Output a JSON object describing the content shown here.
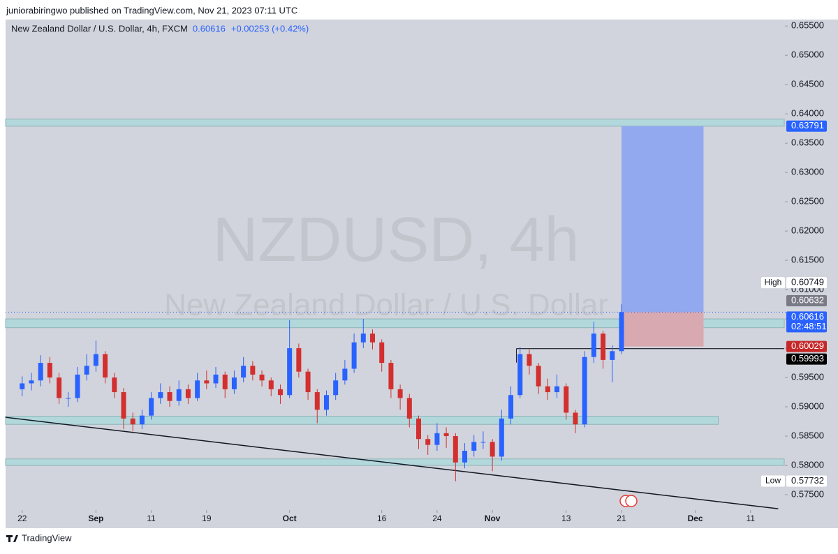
{
  "header": {
    "published": "juniorabiringwo published on TradingView.com, Nov 21, 2023 07:11 UTC"
  },
  "footer": {
    "brand": "TradingView"
  },
  "chart_data": {
    "type": "candlestick",
    "title": "New Zealand Dollar / U.S. Dollar, 4h, FXCM",
    "last_price": 0.60616,
    "change": "+0.00253 (+0.42%)",
    "watermark_symbol": "NZDUSD, 4h",
    "watermark_name": "New Zealand Dollar / U.S. Dollar",
    "up_color": "#2962ff",
    "down_color": "#d32f2f",
    "x": [
      0,
      1,
      2,
      3,
      4,
      5,
      6,
      7,
      8,
      9,
      10,
      11,
      12,
      13,
      14,
      15,
      16,
      17,
      18,
      19,
      20,
      21,
      22,
      23,
      24,
      25,
      26,
      27,
      28,
      29,
      30,
      31,
      32,
      33,
      34,
      35,
      36,
      37,
      38,
      39,
      40,
      41,
      42,
      43,
      44,
      45,
      46,
      47,
      48,
      49,
      50,
      51,
      52,
      53,
      54,
      55,
      56,
      57,
      58,
      59,
      60,
      61,
      62,
      63,
      64,
      65
    ],
    "open": [
      0.593,
      0.594,
      0.5945,
      0.5975,
      0.595,
      0.5915,
      0.5915,
      0.5955,
      0.597,
      0.599,
      0.595,
      0.5925,
      0.588,
      0.587,
      0.5885,
      0.5915,
      0.5925,
      0.591,
      0.593,
      0.5915,
      0.5945,
      0.594,
      0.5955,
      0.593,
      0.595,
      0.597,
      0.5955,
      0.5945,
      0.593,
      0.592,
      0.6,
      0.596,
      0.5925,
      0.5895,
      0.592,
      0.5945,
      0.5965,
      0.601,
      0.6025,
      0.601,
      0.5975,
      0.593,
      0.5915,
      0.588,
      0.5845,
      0.5835,
      0.5855,
      0.585,
      0.5805,
      0.5825,
      0.584,
      0.584,
      0.5815,
      0.588,
      0.592,
      0.599,
      0.597,
      0.5935,
      0.5925,
      0.5935,
      0.589,
      0.587,
      0.5985,
      0.6025,
      0.598,
      0.5995
    ],
    "high": [
      0.5952,
      0.5958,
      0.5988,
      0.5985,
      0.5958,
      0.5925,
      0.5968,
      0.599,
      0.6013,
      0.5995,
      0.5958,
      0.5932,
      0.589,
      0.5895,
      0.5925,
      0.594,
      0.5935,
      0.5945,
      0.5938,
      0.5958,
      0.5962,
      0.5968,
      0.596,
      0.5962,
      0.5985,
      0.5978,
      0.5962,
      0.595,
      0.5938,
      0.6048,
      0.6008,
      0.5965,
      0.593,
      0.5928,
      0.5958,
      0.598,
      0.6025,
      0.605,
      0.6032,
      0.6015,
      0.598,
      0.5938,
      0.5922,
      0.5885,
      0.5852,
      0.5872,
      0.5865,
      0.5855,
      0.5838,
      0.5852,
      0.5858,
      0.5845,
      0.5895,
      0.5935,
      0.6002,
      0.5998,
      0.5975,
      0.5948,
      0.5955,
      0.594,
      0.5895,
      0.5995,
      0.6045,
      0.603,
      0.6005,
      0.60749
    ],
    "low": [
      0.5918,
      0.5928,
      0.5935,
      0.594,
      0.5905,
      0.59,
      0.5908,
      0.5945,
      0.596,
      0.594,
      0.5915,
      0.5862,
      0.5858,
      0.5862,
      0.5878,
      0.5905,
      0.59,
      0.5902,
      0.5905,
      0.591,
      0.593,
      0.5932,
      0.5915,
      0.5922,
      0.5942,
      0.5945,
      0.5935,
      0.5918,
      0.5905,
      0.5915,
      0.595,
      0.5912,
      0.5872,
      0.5885,
      0.5912,
      0.5938,
      0.5958,
      0.6,
      0.5998,
      0.596,
      0.5915,
      0.5895,
      0.5865,
      0.5828,
      0.5818,
      0.5825,
      0.583,
      0.5773,
      0.5795,
      0.5815,
      0.5828,
      0.579,
      0.5808,
      0.587,
      0.5915,
      0.5955,
      0.5922,
      0.5912,
      0.5915,
      0.5878,
      0.5855,
      0.5865,
      0.5975,
      0.5965,
      0.5942,
      0.599
    ],
    "close": [
      0.594,
      0.5945,
      0.5975,
      0.595,
      0.5915,
      0.5915,
      0.5955,
      0.597,
      0.599,
      0.595,
      0.5925,
      0.588,
      0.587,
      0.5885,
      0.5915,
      0.5925,
      0.591,
      0.593,
      0.5915,
      0.5945,
      0.594,
      0.5955,
      0.593,
      0.595,
      0.597,
      0.5955,
      0.5945,
      0.593,
      0.592,
      0.6,
      0.596,
      0.5925,
      0.5895,
      0.592,
      0.5945,
      0.5965,
      0.601,
      0.6025,
      0.601,
      0.5975,
      0.593,
      0.5915,
      0.588,
      0.5845,
      0.5835,
      0.5855,
      0.585,
      0.5805,
      0.5825,
      0.584,
      0.584,
      0.5815,
      0.588,
      0.592,
      0.599,
      0.597,
      0.5935,
      0.5925,
      0.5935,
      0.589,
      0.587,
      0.5985,
      0.6025,
      0.598,
      0.5995,
      0.60616
    ],
    "xlim": [
      -1.8,
      82.65
    ],
    "xticks": [
      {
        "value": 0,
        "label": "22"
      },
      {
        "value": 8,
        "label": "Sep"
      },
      {
        "value": 14,
        "label": "11"
      },
      {
        "value": 20,
        "label": "19"
      },
      {
        "value": 29,
        "label": "Oct"
      },
      {
        "value": 39,
        "label": "16"
      },
      {
        "value": 45,
        "label": "24"
      },
      {
        "value": 51,
        "label": "Nov"
      },
      {
        "value": 59,
        "label": "13"
      },
      {
        "value": 65,
        "label": "21"
      },
      {
        "value": 73,
        "label": "Dec"
      },
      {
        "value": 79,
        "label": "11"
      }
    ],
    "ylim": [
      0.5725,
      0.6561
    ],
    "yticks": [
      {
        "value": 0.655,
        "label": "0.65500"
      },
      {
        "value": 0.65,
        "label": "0.65000"
      },
      {
        "value": 0.645,
        "label": "0.64500"
      },
      {
        "value": 0.64,
        "label": "0.64000"
      },
      {
        "value": 0.635,
        "label": "0.63500"
      },
      {
        "value": 0.63,
        "label": "0.63000"
      },
      {
        "value": 0.625,
        "label": "0.62500"
      },
      {
        "value": 0.62,
        "label": "0.62000"
      },
      {
        "value": 0.615,
        "label": "0.61500"
      },
      {
        "value": 0.61,
        "label": "0.61000"
      },
      {
        "value": 0.605,
        "label": "0.60500"
      },
      {
        "value": 0.6,
        "label": "0.60000"
      },
      {
        "value": 0.595,
        "label": "0.59500"
      },
      {
        "value": 0.59,
        "label": "0.59000"
      },
      {
        "value": 0.585,
        "label": "0.58500"
      },
      {
        "value": 0.58,
        "label": "0.58000"
      },
      {
        "value": 0.575,
        "label": "0.57500"
      }
    ],
    "zones": [
      {
        "low": 0.6379,
        "high": 0.6391,
        "x_end": 82.65
      },
      {
        "low": 0.6035,
        "high": 0.605,
        "x_end": 82.65
      },
      {
        "low": 0.587,
        "high": 0.5884,
        "x_end": 75.5
      },
      {
        "low": 0.58,
        "high": 0.5811,
        "x_end": 82.65
      }
    ],
    "trendline": {
      "x": [
        -1.8,
        82.0
      ],
      "y": [
        0.5882,
        0.5726
      ]
    },
    "level_line": {
      "x": [
        53.6,
        82.65
      ],
      "y": 0.59993
    },
    "position": {
      "x": [
        65,
        73.9
      ],
      "entry": 0.60616,
      "target": 0.63791,
      "stop": 0.60029
    },
    "price_labels": [
      {
        "value": 0.63791,
        "color": "#2962ff"
      },
      {
        "value": 0.60749,
        "text": "High",
        "color": "#ffffff"
      },
      {
        "value": 0.60632,
        "color": "#787b86"
      },
      {
        "value": 0.60616,
        "countdown": "02:48:51",
        "color": "#2962ff"
      },
      {
        "value": 0.60029,
        "color": "#c62828"
      },
      {
        "value": 0.59993,
        "color": "#000000"
      },
      {
        "value": 0.57732,
        "text": "Low",
        "color": "#ffffff"
      }
    ]
  }
}
